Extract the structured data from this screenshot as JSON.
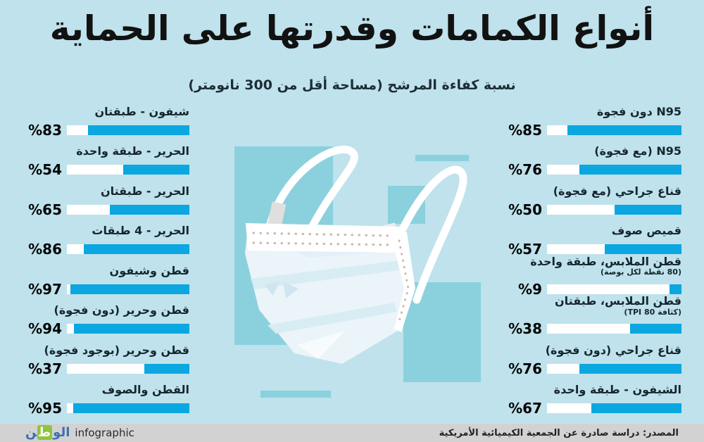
{
  "title": "أنواع الكمامات وقدرتها على الحماية",
  "subtitle": "نسبة كفاءة المرشح (مساحة أقل من 300 نانومتر)",
  "chart_data": {
    "type": "bar",
    "orientation": "horizontal-rtl",
    "unit": "%",
    "xlim": [
      0,
      100
    ],
    "title": "أنواع الكمامات وقدرتها على الحماية",
    "subtitle": "نسبة كفاءة المرشح (مساحة أقل من 300 نانومتر)",
    "left_column": {
      "items": [
        {
          "label": "شيفون - طبقتان",
          "sublabel": "",
          "value": 83,
          "display": "%83"
        },
        {
          "label": "الحرير - طبقة واحدة",
          "sublabel": "",
          "value": 54,
          "display": "%54"
        },
        {
          "label": "الحرير - طبقتان",
          "sublabel": "",
          "value": 65,
          "display": "%65"
        },
        {
          "label": "الحرير - 4 طبقات",
          "sublabel": "",
          "value": 86,
          "display": "%86"
        },
        {
          "label": "قطن وشيفون",
          "sublabel": "",
          "value": 97,
          "display": "%97"
        },
        {
          "label": "قطن وحرير (دون فجوة)",
          "sublabel": "",
          "value": 94,
          "display": "%94"
        },
        {
          "label": "قطن وحرير (بوجود فجوة)",
          "sublabel": "",
          "value": 37,
          "display": "%37"
        },
        {
          "label": "القطن والصوف",
          "sublabel": "",
          "value": 95,
          "display": "%95"
        }
      ]
    },
    "right_column": {
      "items": [
        {
          "label": "N95 دون فجوة",
          "sublabel": "",
          "value": 85,
          "display": "%85"
        },
        {
          "label": "N95 (مع فجوة)",
          "sublabel": "",
          "value": 76,
          "display": "%76"
        },
        {
          "label": "قناع جراحي (مع فجوة)",
          "sublabel": "",
          "value": 50,
          "display": "%50"
        },
        {
          "label": "قميص صوف",
          "sublabel": "",
          "value": 57,
          "display": "%57"
        },
        {
          "label": "قطن الملابس، طبقة واحدة",
          "sublabel": "(80 نقطة لكل بوصة)",
          "value": 9,
          "display": "%9"
        },
        {
          "label": "قطن الملابس، طبقتان",
          "sublabel": "(كثافة TPI 80)",
          "value": 38,
          "display": "%38"
        },
        {
          "label": "قناع جراحي (دون فجوة)",
          "sublabel": "",
          "value": 76,
          "display": "%76"
        },
        {
          "label": "الشيفون - طبقة واحدة",
          "sublabel": "",
          "value": 67,
          "display": "%67"
        }
      ]
    }
  },
  "footer": {
    "brand_prefix": "ال",
    "brand_green_letter": "ط",
    "brand_rest": "ن",
    "brand_mid": "و",
    "brand_suffix": "infographic",
    "source": "المصدر: دراسة صادرة عن الجمعية الكيميائية الأمريكية"
  },
  "colors": {
    "background": "#bfe2ec",
    "accent_teal": "#8bd1dd",
    "bar_fill": "#0aa7e0",
    "bar_track": "#ffffff",
    "footer_bg": "#d2d2d2",
    "brand_blue": "#3e6fb3",
    "brand_green": "#8fc43e",
    "text_dark": "#16262e"
  }
}
